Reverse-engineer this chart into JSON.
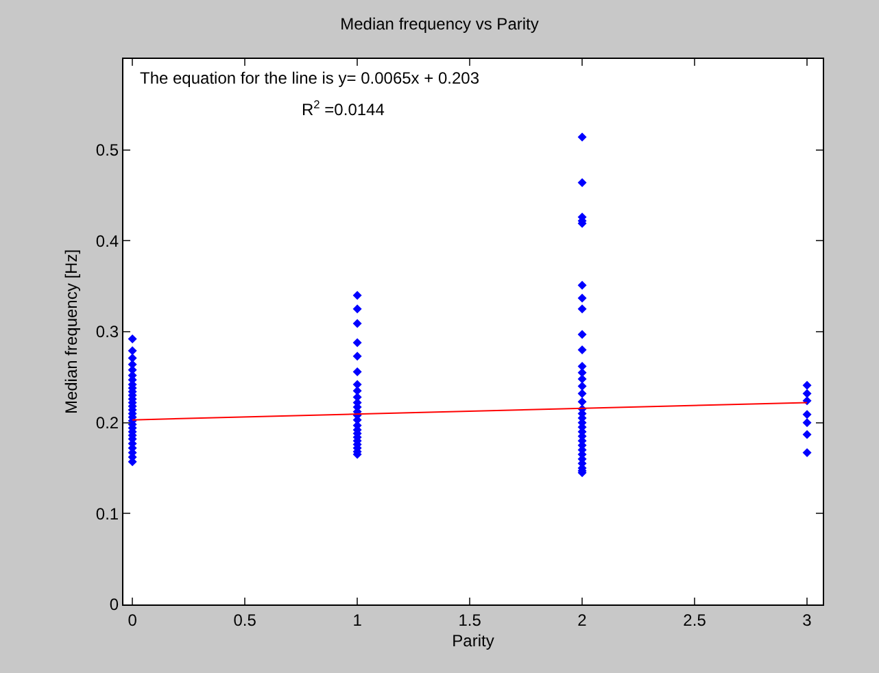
{
  "chart_data": {
    "type": "scatter",
    "title": "Median frequency vs Parity",
    "xlabel": "Parity",
    "ylabel": "Median frequency [Hz]",
    "xlim": [
      -0.04,
      3.07
    ],
    "ylim": [
      0,
      0.6
    ],
    "xticks": [
      0,
      0.5,
      1,
      1.5,
      2,
      2.5,
      3
    ],
    "yticks": [
      0,
      0.1,
      0.2,
      0.3,
      0.4,
      0.5
    ],
    "grid": false,
    "marker": "diamond",
    "annotations": [
      "The equation for the line is y= 0.0065x + 0.203",
      "R$^{2}$ =0.0144"
    ],
    "series": [
      {
        "color": "#0000ff",
        "x": [
          0,
          0,
          0,
          0,
          0,
          0,
          0,
          0,
          0,
          0,
          0,
          0,
          0,
          0,
          0,
          0,
          0,
          0,
          0,
          0,
          0,
          0,
          0,
          0,
          0,
          0,
          0,
          0,
          1,
          1,
          1,
          1,
          1,
          1,
          1,
          1,
          1,
          1,
          1,
          1,
          1,
          1,
          1,
          1,
          1,
          1,
          1,
          1,
          1,
          1,
          1,
          2,
          2,
          2,
          2,
          2,
          2,
          2,
          2,
          2,
          2,
          2,
          2,
          2,
          2,
          2,
          2,
          2,
          2,
          2,
          2,
          2,
          2,
          2,
          2,
          2,
          2,
          2,
          2,
          2,
          2,
          2,
          2,
          3,
          3,
          3,
          3,
          3,
          3,
          3
        ],
        "values": [
          0.157,
          0.162,
          0.167,
          0.172,
          0.177,
          0.182,
          0.186,
          0.19,
          0.194,
          0.198,
          0.202,
          0.206,
          0.21,
          0.214,
          0.218,
          0.222,
          0.226,
          0.23,
          0.234,
          0.238,
          0.242,
          0.247,
          0.252,
          0.258,
          0.264,
          0.271,
          0.279,
          0.292,
          0.34,
          0.325,
          0.309,
          0.288,
          0.273,
          0.256,
          0.242,
          0.235,
          0.228,
          0.222,
          0.217,
          0.212,
          0.208,
          0.203,
          0.197,
          0.192,
          0.188,
          0.184,
          0.18,
          0.176,
          0.172,
          0.168,
          0.165,
          0.514,
          0.464,
          0.426,
          0.422,
          0.419,
          0.351,
          0.337,
          0.325,
          0.297,
          0.28,
          0.262,
          0.255,
          0.248,
          0.24,
          0.232,
          0.223,
          0.215,
          0.21,
          0.205,
          0.2,
          0.195,
          0.19,
          0.185,
          0.18,
          0.175,
          0.17,
          0.165,
          0.16,
          0.155,
          0.15,
          0.147,
          0.145,
          0.241,
          0.232,
          0.224,
          0.209,
          0.2,
          0.187,
          0.167
        ]
      },
      {
        "type": "line",
        "marker": "none",
        "color": "#ff0000",
        "x": [
          0,
          3
        ],
        "values": [
          0.203,
          0.222
        ]
      }
    ]
  }
}
